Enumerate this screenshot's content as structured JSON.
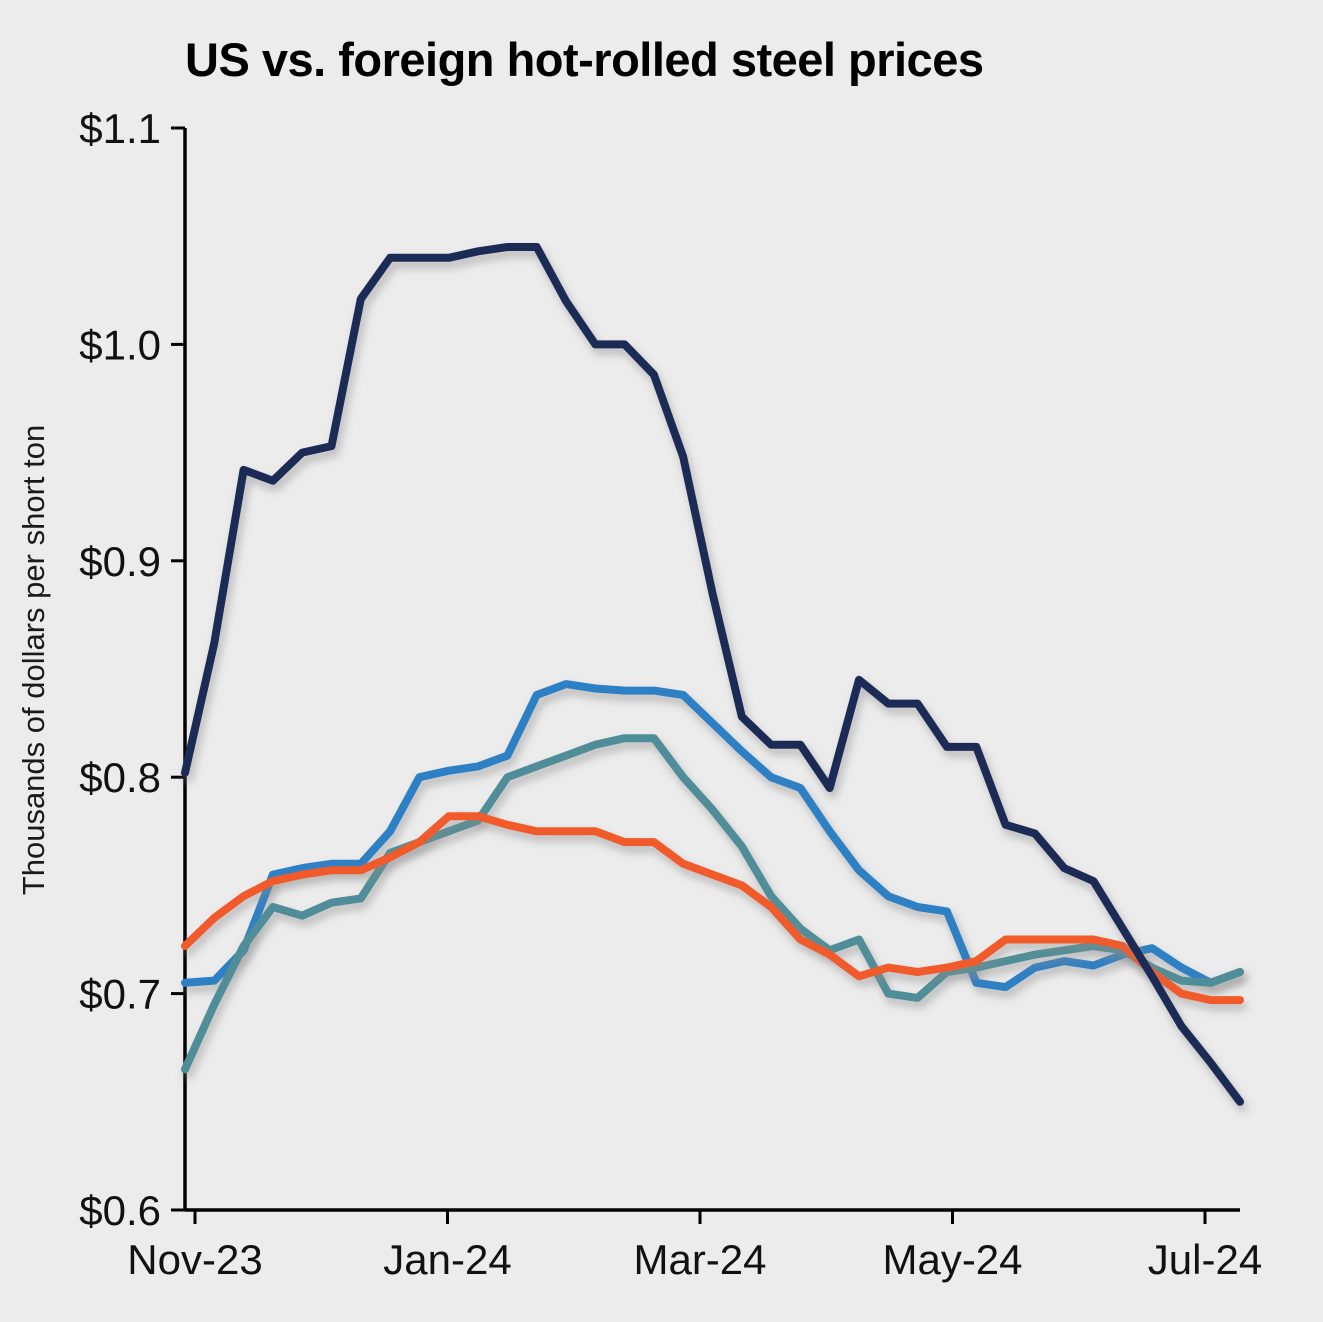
{
  "chart_data": {
    "type": "line",
    "title": "US vs. foreign hot-rolled steel prices",
    "xlabel": "",
    "ylabel": "Thousands of dollars per short ton",
    "ylim": [
      0.6,
      1.1
    ],
    "grid": false,
    "legend": "none",
    "background_color": "#ececec",
    "axis_color": "#000000",
    "x_tick_labels": [
      "Nov-23",
      "Jan-24",
      "Mar-24",
      "May-24",
      "Jul-24"
    ],
    "y_ticks": [
      {
        "label": "$0.6",
        "value": 0.6
      },
      {
        "label": "$0.7",
        "value": 0.7
      },
      {
        "label": "$0.8",
        "value": 0.8
      },
      {
        "label": "$0.9",
        "value": 0.9
      },
      {
        "label": "$1.0",
        "value": 1.0
      },
      {
        "label": "$1.1",
        "value": 1.1
      }
    ],
    "x_unit": "weekly observations, Nov-23 through Jul-24",
    "series": [
      {
        "name": "blue",
        "color": "#2d80c4",
        "values": [
          0.705,
          0.706,
          0.72,
          0.755,
          0.758,
          0.76,
          0.76,
          0.775,
          0.8,
          0.803,
          0.805,
          0.81,
          0.838,
          0.843,
          0.841,
          0.84,
          0.84,
          0.838,
          0.825,
          0.812,
          0.8,
          0.795,
          0.775,
          0.757,
          0.745,
          0.74,
          0.738,
          0.705,
          0.703,
          0.712,
          0.715,
          0.713,
          0.718,
          0.721,
          0.712,
          0.705,
          0.71
        ]
      },
      {
        "name": "teal",
        "color": "#4f8e98",
        "values": [
          0.665,
          0.695,
          0.722,
          0.74,
          0.736,
          0.742,
          0.744,
          0.765,
          0.77,
          0.775,
          0.78,
          0.8,
          0.805,
          0.81,
          0.815,
          0.818,
          0.818,
          0.8,
          0.785,
          0.768,
          0.745,
          0.73,
          0.72,
          0.725,
          0.7,
          0.698,
          0.71,
          0.712,
          0.715,
          0.718,
          0.72,
          0.722,
          0.72,
          0.712,
          0.706,
          0.705,
          0.71
        ]
      },
      {
        "name": "orange",
        "color": "#f15a29",
        "values": [
          0.722,
          0.735,
          0.745,
          0.752,
          0.755,
          0.757,
          0.757,
          0.763,
          0.77,
          0.782,
          0.782,
          0.778,
          0.775,
          0.775,
          0.775,
          0.77,
          0.77,
          0.76,
          0.755,
          0.75,
          0.74,
          0.725,
          0.718,
          0.708,
          0.712,
          0.71,
          0.712,
          0.715,
          0.725,
          0.725,
          0.725,
          0.725,
          0.722,
          0.71,
          0.7,
          0.697,
          0.697
        ]
      },
      {
        "name": "navy",
        "color": "#1b2a56",
        "values": [
          0.802,
          0.862,
          0.942,
          0.937,
          0.95,
          0.953,
          1.021,
          1.04,
          1.04,
          1.04,
          1.043,
          1.045,
          1.045,
          1.02,
          1.0,
          1.0,
          0.986,
          0.948,
          0.885,
          0.828,
          0.815,
          0.815,
          0.795,
          0.845,
          0.834,
          0.834,
          0.814,
          0.814,
          0.778,
          0.774,
          0.758,
          0.752,
          0.73,
          0.708,
          0.685,
          0.668,
          0.65
        ]
      }
    ]
  }
}
